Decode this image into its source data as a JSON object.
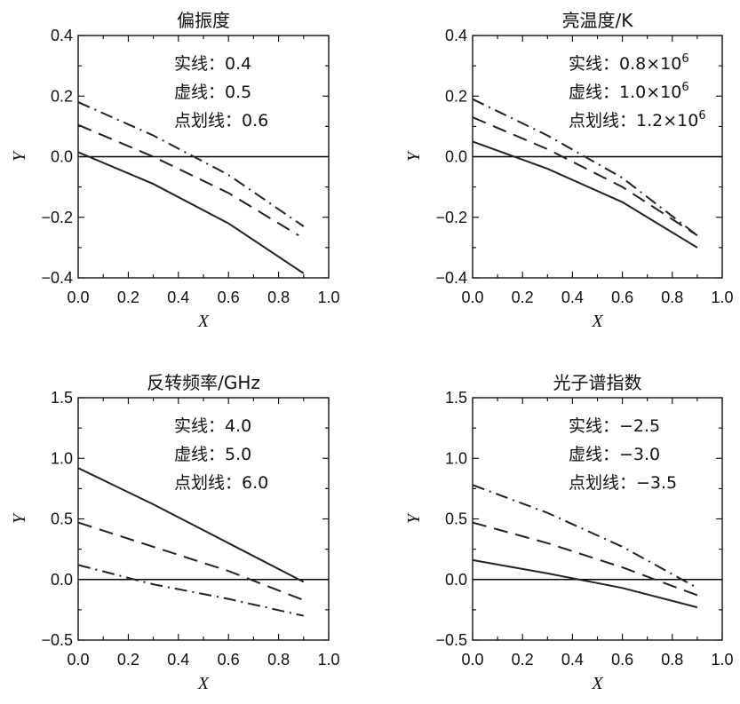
{
  "chart_data": [
    {
      "type": "line",
      "title": "偏振度",
      "xlabel": "X",
      "ylabel": "Y",
      "xlim": [
        0,
        1
      ],
      "ylim": [
        -0.4,
        0.4
      ],
      "xticks": [
        "0.0",
        "0.2",
        "0.4",
        "0.6",
        "0.8",
        "1.0"
      ],
      "yticks": [
        "−0.4",
        "−0.2",
        "0.0",
        "0.2",
        "0.4"
      ],
      "yticks_values": [
        -0.4,
        -0.2,
        0.0,
        0.2,
        0.4
      ],
      "reference_line_y": 0,
      "annotations": [
        {
          "text": "实线：0.4",
          "sup": ""
        },
        {
          "text": "虚线：0.5",
          "sup": ""
        },
        {
          "text": "点划线：0.6",
          "sup": ""
        }
      ],
      "series": [
        {
          "style": "solid",
          "x": [
            0,
            0.3,
            0.6,
            0.9
          ],
          "y": [
            0.015,
            -0.09,
            -0.22,
            -0.385
          ]
        },
        {
          "style": "dashed",
          "x": [
            0,
            0.3,
            0.6,
            0.88
          ],
          "y": [
            0.105,
            0.0,
            -0.12,
            -0.26
          ]
        },
        {
          "style": "dashdot",
          "x": [
            0,
            0.3,
            0.6,
            0.9
          ],
          "y": [
            0.18,
            0.07,
            -0.06,
            -0.23
          ]
        }
      ]
    },
    {
      "type": "line",
      "title": "亮温度/K",
      "xlabel": "X",
      "ylabel": "Y",
      "xlim": [
        0,
        1
      ],
      "ylim": [
        -0.4,
        0.4
      ],
      "xticks": [
        "0.0",
        "0.2",
        "0.4",
        "0.6",
        "0.8",
        "1.0"
      ],
      "yticks": [
        "−0.4",
        "−0.2",
        "0.0",
        "0.2",
        "0.4"
      ],
      "yticks_values": [
        -0.4,
        -0.2,
        0.0,
        0.2,
        0.4
      ],
      "reference_line_y": 0,
      "annotations": [
        {
          "text": "实线：0.8×10",
          "sup": "6"
        },
        {
          "text": "虚线：1.0×10",
          "sup": "6"
        },
        {
          "text": "点划线：1.2×10",
          "sup": "6"
        }
      ],
      "series": [
        {
          "style": "solid",
          "x": [
            0,
            0.3,
            0.6,
            0.9
          ],
          "y": [
            0.05,
            -0.04,
            -0.15,
            -0.3
          ]
        },
        {
          "style": "dashed",
          "x": [
            0,
            0.3,
            0.6,
            0.9
          ],
          "y": [
            0.13,
            0.025,
            -0.1,
            -0.26
          ]
        },
        {
          "style": "dashdot",
          "x": [
            0,
            0.3,
            0.6,
            0.9
          ],
          "y": [
            0.19,
            0.07,
            -0.07,
            -0.26
          ]
        }
      ]
    },
    {
      "type": "line",
      "title": "反转频率/GHz",
      "xlabel": "X",
      "ylabel": "Y",
      "xlim": [
        0,
        1
      ],
      "ylim": [
        -0.5,
        1.5
      ],
      "xticks": [
        "0.0",
        "0.2",
        "0.4",
        "0.6",
        "0.8",
        "1.0"
      ],
      "yticks": [
        "−0.5",
        "0.0",
        "0.5",
        "1.0",
        "1.5"
      ],
      "yticks_values": [
        -0.5,
        0.0,
        0.5,
        1.0,
        1.5
      ],
      "reference_line_y": 0,
      "annotations": [
        {
          "text": "实线：4.0",
          "sup": ""
        },
        {
          "text": "虚线：5.0",
          "sup": ""
        },
        {
          "text": "点划线：6.0",
          "sup": ""
        }
      ],
      "series": [
        {
          "style": "solid",
          "x": [
            0,
            0.3,
            0.6,
            0.9
          ],
          "y": [
            0.92,
            0.62,
            0.3,
            -0.02
          ]
        },
        {
          "style": "dashed",
          "x": [
            0,
            0.3,
            0.6,
            0.9
          ],
          "y": [
            0.47,
            0.27,
            0.07,
            -0.17
          ]
        },
        {
          "style": "dashdot",
          "x": [
            0,
            0.3,
            0.6,
            0.9
          ],
          "y": [
            0.12,
            -0.04,
            -0.16,
            -0.3
          ]
        }
      ]
    },
    {
      "type": "line",
      "title": "光子谱指数",
      "xlabel": "X",
      "ylabel": "Y",
      "xlim": [
        0,
        1
      ],
      "ylim": [
        -0.5,
        1.5
      ],
      "xticks": [
        "0.0",
        "0.2",
        "0.4",
        "0.6",
        "0.8",
        "1.0"
      ],
      "yticks": [
        "−0.5",
        "0.0",
        "0.5",
        "1.0",
        "1.5"
      ],
      "yticks_values": [
        -0.5,
        0.0,
        0.5,
        1.0,
        1.5
      ],
      "reference_line_y": 0,
      "annotations": [
        {
          "text": "实线：−2.5",
          "sup": ""
        },
        {
          "text": "虚线：−3.0",
          "sup": ""
        },
        {
          "text": "点划线：−3.5",
          "sup": ""
        }
      ],
      "series": [
        {
          "style": "solid",
          "x": [
            0,
            0.3,
            0.6,
            0.9
          ],
          "y": [
            0.16,
            0.05,
            -0.07,
            -0.23
          ]
        },
        {
          "style": "dashed",
          "x": [
            0,
            0.3,
            0.6,
            0.9
          ],
          "y": [
            0.47,
            0.3,
            0.1,
            -0.13
          ]
        },
        {
          "style": "dashdot",
          "x": [
            0,
            0.3,
            0.6,
            0.9
          ],
          "y": [
            0.78,
            0.55,
            0.27,
            -0.07
          ]
        }
      ]
    }
  ]
}
